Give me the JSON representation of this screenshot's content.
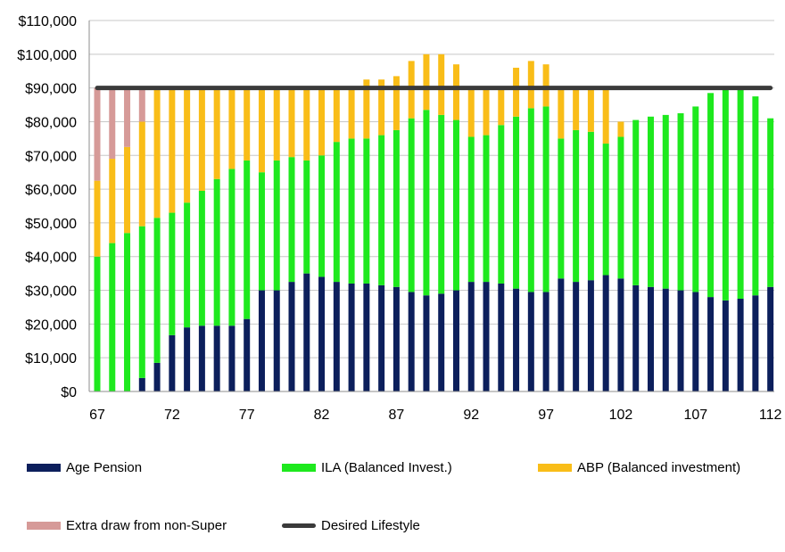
{
  "chart_data": {
    "type": "bar",
    "stacked": true,
    "y_tick_labels": [
      "$0",
      "$10,000",
      "$20,000",
      "$30,000",
      "$40,000",
      "$50,000",
      "$60,000",
      "$70,000",
      "$80,000",
      "$90,000",
      "$100,000",
      "$110,000"
    ],
    "x_tick_labels": [
      "67",
      "72",
      "77",
      "82",
      "87",
      "92",
      "97",
      "102",
      "107",
      "112"
    ],
    "ylim": [
      0,
      110000
    ],
    "x": [
      67,
      68,
      69,
      70,
      71,
      72,
      73,
      74,
      75,
      76,
      77,
      78,
      79,
      80,
      81,
      82,
      83,
      84,
      85,
      86,
      87,
      88,
      89,
      90,
      91,
      92,
      93,
      94,
      95,
      96,
      97,
      98,
      99,
      100,
      101,
      102,
      103,
      104,
      105,
      106,
      107,
      108,
      109,
      110,
      111,
      112
    ],
    "grid": true,
    "series": [
      {
        "name": "Age Pension",
        "color": "#0c1f5c",
        "values": [
          0,
          0,
          0,
          4000,
          8500,
          16700,
          19000,
          19500,
          19500,
          19500,
          21500,
          30000,
          30000,
          32500,
          35000,
          34000,
          32500,
          32000,
          32000,
          31500,
          31000,
          29500,
          28500,
          29000,
          30000,
          32500,
          32500,
          32000,
          30500,
          29500,
          29500,
          33500,
          32500,
          33000,
          34500,
          33500,
          31500,
          31000,
          30500,
          30000,
          29500,
          28000,
          27000,
          27500,
          28500,
          31000
        ]
      },
      {
        "name": "ILA (Balanced Invest.)",
        "color": "#1ee91e",
        "values": [
          40000,
          44000,
          47000,
          45000,
          43000,
          36300,
          37000,
          40000,
          43500,
          46500,
          47000,
          35000,
          38500,
          37000,
          33500,
          36000,
          41500,
          43000,
          43000,
          44500,
          46500,
          51500,
          55000,
          53000,
          50500,
          43000,
          43500,
          47000,
          51000,
          54500,
          55000,
          41500,
          45000,
          44000,
          39000,
          42000,
          49000,
          50500,
          51500,
          52500,
          55000,
          60500,
          63500,
          62000,
          59000,
          50000
        ]
      },
      {
        "name": "ABP (Balanced investment)",
        "color": "#f9bd18",
        "values": [
          22500,
          25000,
          25500,
          31000,
          38500,
          37000,
          34000,
          30500,
          27000,
          24000,
          21500,
          25000,
          21500,
          20500,
          21500,
          20000,
          16000,
          15000,
          17500,
          16500,
          16000,
          17000,
          16500,
          18000,
          16500,
          14500,
          14000,
          11000,
          14500,
          14000,
          12500,
          15000,
          12500,
          13000,
          16500,
          4500,
          0,
          0,
          0,
          0,
          0,
          0,
          0,
          0,
          0,
          0
        ]
      },
      {
        "name": "Extra draw from non-Super",
        "color": "#d69a98",
        "values": [
          27500,
          21000,
          17500,
          10000,
          0,
          0,
          0,
          0,
          0,
          0,
          0,
          0,
          0,
          0,
          0,
          0,
          0,
          0,
          0,
          0,
          0,
          0,
          0,
          0,
          0,
          0,
          0,
          0,
          0,
          0,
          0,
          0,
          0,
          0,
          0,
          0,
          0,
          0,
          0,
          0,
          0,
          0,
          0,
          0,
          0,
          0
        ]
      },
      {
        "name": "Desired Lifestyle",
        "color": "#3a3a3a",
        "type": "line",
        "values": [
          90000,
          90000,
          90000,
          90000,
          90000,
          90000,
          90000,
          90000,
          90000,
          90000,
          90000,
          90000,
          90000,
          90000,
          90000,
          90000,
          90000,
          90000,
          90000,
          90000,
          90000,
          90000,
          90000,
          90000,
          90000,
          90000,
          90000,
          90000,
          90000,
          90000,
          90000,
          90000,
          90000,
          90000,
          90000,
          90000,
          90000,
          90000,
          90000,
          90000,
          90000,
          90000,
          90000,
          90000,
          90000,
          90000
        ]
      }
    ]
  },
  "legend": {
    "items": [
      {
        "label": "Age Pension",
        "color": "#0c1f5c"
      },
      {
        "label": "ILA (Balanced Invest.)",
        "color": "#1ee91e"
      },
      {
        "label": "ABP (Balanced investment)",
        "color": "#f9bd18"
      },
      {
        "label": "Extra draw from non-Super",
        "color": "#d69a98"
      },
      {
        "label": "Desired Lifestyle",
        "color": "#3a3a3a"
      }
    ]
  }
}
